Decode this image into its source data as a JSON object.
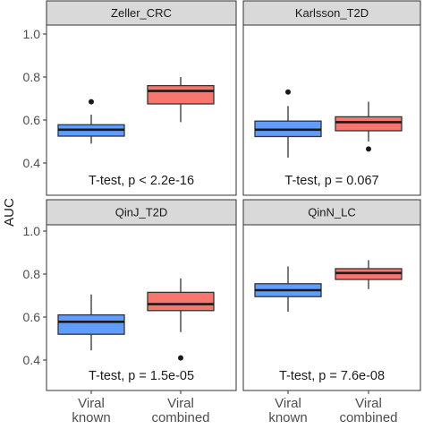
{
  "chart_data": {
    "type": "box",
    "ylabel": "AUC",
    "categories": [
      "Viral\nknown",
      "Viral\ncombined"
    ],
    "colors": {
      "Viral known": "#619cff",
      "Viral combined": "#f8766d"
    },
    "ylim": [
      0.4,
      1.0
    ],
    "yticks": [
      0.4,
      0.6,
      0.8,
      1.0
    ],
    "ytick_labels": [
      "0.4",
      "0.6",
      "0.8",
      "1.0"
    ],
    "panels": [
      {
        "title": "Zeller_CRC",
        "annotation": "T-test, p < 2.2e-16",
        "boxes": [
          {
            "category": "Viral\nknown",
            "whisker_low": 0.49,
            "q1": 0.525,
            "median": 0.555,
            "q3": 0.578,
            "whisker_high": 0.625,
            "outliers": [
              0.685
            ]
          },
          {
            "category": "Viral\ncombined",
            "whisker_low": 0.59,
            "q1": 0.675,
            "median": 0.735,
            "q3": 0.76,
            "whisker_high": 0.8,
            "outliers": []
          }
        ]
      },
      {
        "title": "Karlsson_T2D",
        "annotation": "T-test, p = 0.067",
        "boxes": [
          {
            "category": "Viral\nknown",
            "whisker_low": 0.425,
            "q1": 0.523,
            "median": 0.555,
            "q3": 0.595,
            "whisker_high": 0.665,
            "outliers": [
              0.73
            ]
          },
          {
            "category": "Viral\ncombined",
            "whisker_low": 0.5,
            "q1": 0.55,
            "median": 0.59,
            "q3": 0.615,
            "whisker_high": 0.685,
            "outliers": [
              0.465
            ]
          }
        ]
      },
      {
        "title": "QinJ_T2D",
        "annotation": "T-test, p = 1.5e-05",
        "boxes": [
          {
            "category": "Viral\nknown",
            "whisker_low": 0.445,
            "q1": 0.52,
            "median": 0.578,
            "q3": 0.61,
            "whisker_high": 0.705,
            "outliers": []
          },
          {
            "category": "Viral\ncombined",
            "whisker_low": 0.53,
            "q1": 0.63,
            "median": 0.66,
            "q3": 0.715,
            "whisker_high": 0.78,
            "outliers": [
              0.41
            ]
          }
        ]
      },
      {
        "title": "QinN_LC",
        "annotation": "T-test, p = 7.6e-08",
        "boxes": [
          {
            "category": "Viral\nknown",
            "whisker_low": 0.625,
            "q1": 0.695,
            "median": 0.725,
            "q3": 0.755,
            "whisker_high": 0.835,
            "outliers": []
          },
          {
            "category": "Viral\ncombined",
            "whisker_low": 0.73,
            "q1": 0.775,
            "median": 0.805,
            "q3": 0.825,
            "whisker_high": 0.865,
            "outliers": []
          }
        ]
      }
    ]
  }
}
